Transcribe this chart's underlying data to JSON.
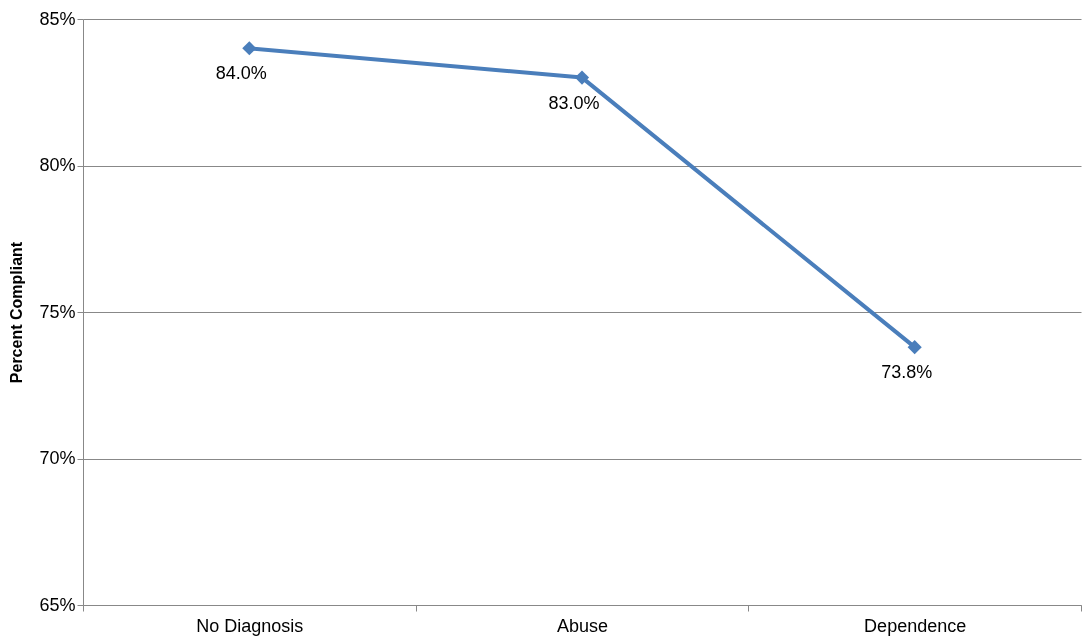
{
  "chart_data": {
    "type": "line",
    "ylabel": "Percent Compliant",
    "categories": [
      "No Diagnosis",
      "Abuse",
      "Dependence"
    ],
    "series": [
      {
        "color": "#4a7ebb",
        "values": [
          84.0,
          83.0,
          73.8
        ],
        "value_labels": [
          "84.0%",
          "83.0%",
          "73.8%"
        ]
      }
    ],
    "ylim": [
      65,
      85
    ],
    "yticks": [
      {
        "value": 65,
        "label": "65%"
      },
      {
        "value": 70,
        "label": "70%"
      },
      {
        "value": 75,
        "label": "75%"
      },
      {
        "value": 80,
        "label": "80%"
      },
      {
        "value": 85,
        "label": "85%"
      }
    ],
    "grid": "y",
    "marker": "diamond",
    "line_style": "solid",
    "legend": false
  }
}
